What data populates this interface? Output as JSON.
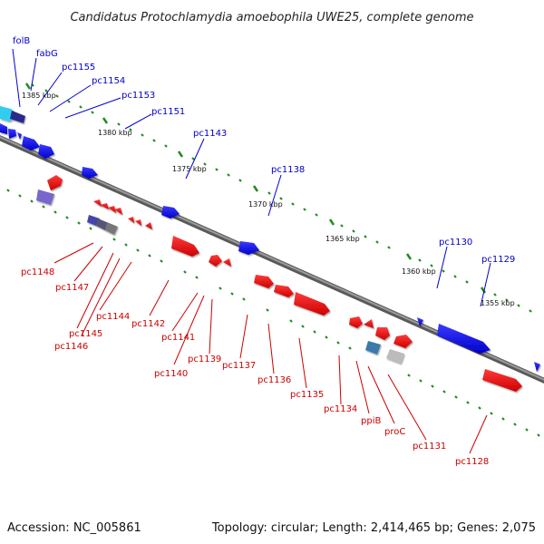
{
  "title": "Candidatus Protochlamydia amoebophila UWE25, complete genome",
  "footer": {
    "accession": "Accession: NC_005861",
    "topology": "Topology: circular; Length: 2,414,465 bp; Genes: 2,075"
  },
  "colors": {
    "backbone": "#777777",
    "forward_gene": "#0000ee",
    "reverse_gene": "#ee0000",
    "tick": "#228b22",
    "label_top": "#0000cc",
    "label_bottom": "#cc0000"
  },
  "kbp_ticks": [
    "1385 kbp",
    "1380 kbp",
    "1375 kbp",
    "1370 kbp",
    "1365 kbp",
    "1360 kbp",
    "1355 kbp"
  ],
  "top_labels": [
    "folB",
    "fabG",
    "pc1155",
    "pc1154",
    "pc1153",
    "pc1151",
    "pc1143",
    "pc1138",
    "pc1130",
    "pc1129"
  ],
  "bottom_labels": [
    "pc1148",
    "pc1147",
    "pc1145",
    "pc1146",
    "pc1144",
    "pc1142",
    "pc1141",
    "pc1140",
    "pc1139",
    "pc1137",
    "pc1136",
    "pc1135",
    "pc1134",
    "ppiB",
    "proC",
    "pc1131",
    "pc1128"
  ]
}
